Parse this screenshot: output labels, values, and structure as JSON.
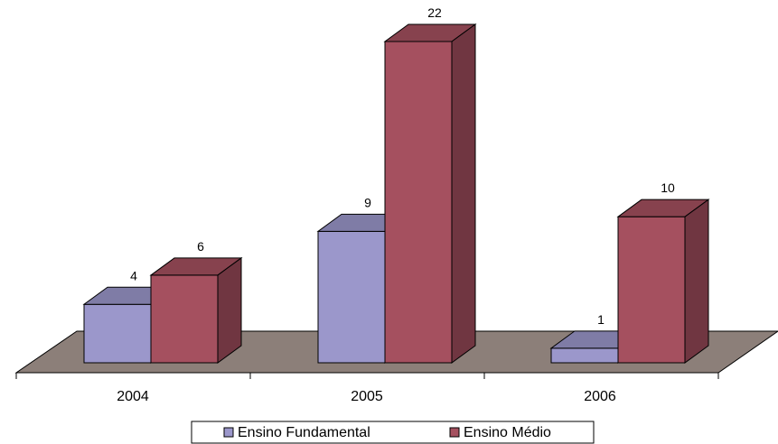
{
  "chart_data": {
    "type": "bar",
    "categories": [
      "2004",
      "2005",
      "2006"
    ],
    "series": [
      {
        "name": "Ensino Fundamental",
        "values": [
          4,
          9,
          1
        ],
        "color": "#9b97cb"
      },
      {
        "name": "Ensino Médio",
        "values": [
          6,
          22,
          10
        ],
        "color": "#a5505f"
      }
    ],
    "title": "",
    "xlabel": "",
    "ylabel": "",
    "ylim": [
      0,
      22
    ],
    "grid": false,
    "legend": "bottom-center",
    "floor_color": "#8c7f79"
  }
}
